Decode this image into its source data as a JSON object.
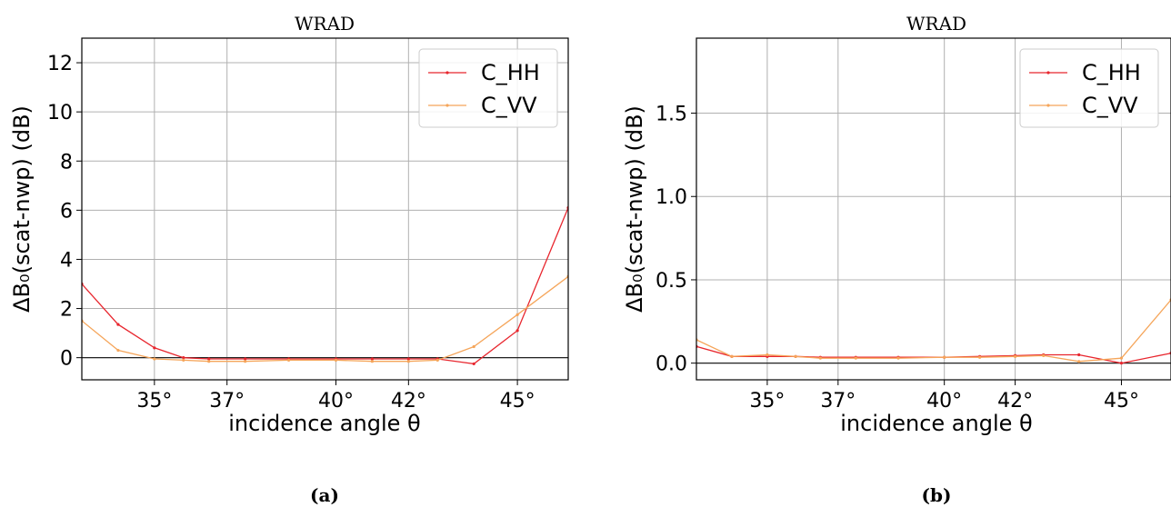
{
  "chart_data": [
    {
      "type": "line",
      "panel_label": "(a)",
      "title": "WRAD",
      "xlabel": "incidence angle θ",
      "ylabel": "ΔB₀(scat-nwp) (dB)",
      "xlim": [
        33.0,
        46.4
      ],
      "ylim": [
        -0.9,
        13.0
      ],
      "xticks": [
        35,
        37,
        40,
        42,
        45
      ],
      "xtick_labels": [
        "35°",
        "37°",
        "40°",
        "42°",
        "45°"
      ],
      "yticks": [
        0,
        2,
        4,
        6,
        8,
        10,
        12
      ],
      "ytick_labels": [
        "0",
        "2",
        "4",
        "6",
        "8",
        "10",
        "12"
      ],
      "grid": true,
      "zero_line": true,
      "legend": "top-right",
      "series": [
        {
          "name": "C_HH",
          "color": "#e8262e",
          "x": [
            33.0,
            34.0,
            35.0,
            35.8,
            36.5,
            37.5,
            38.7,
            40.0,
            41.0,
            42.0,
            42.8,
            43.8,
            45.0,
            46.4
          ],
          "y": [
            3.0,
            1.35,
            0.4,
            0.0,
            -0.05,
            -0.05,
            -0.05,
            -0.05,
            -0.05,
            -0.05,
            -0.05,
            -0.25,
            1.1,
            6.1
          ]
        },
        {
          "name": "C_VV",
          "color": "#f5a55a",
          "x": [
            33.0,
            34.0,
            35.0,
            35.8,
            36.5,
            37.5,
            38.7,
            40.0,
            41.0,
            42.0,
            42.8,
            43.8,
            45.0,
            46.4
          ],
          "y": [
            1.5,
            0.3,
            -0.05,
            -0.1,
            -0.15,
            -0.15,
            -0.1,
            -0.1,
            -0.15,
            -0.15,
            -0.1,
            0.45,
            1.75,
            3.3
          ]
        }
      ]
    },
    {
      "type": "line",
      "panel_label": "(b)",
      "title": "WRAD",
      "xlabel": "incidence angle θ",
      "ylabel": "ΔB₀(scat-nwp) (dB)",
      "xlim": [
        33.0,
        46.4
      ],
      "ylim": [
        -0.1,
        1.95
      ],
      "xticks": [
        35,
        37,
        40,
        42,
        45
      ],
      "xtick_labels": [
        "35°",
        "37°",
        "40°",
        "42°",
        "45°"
      ],
      "yticks": [
        0.0,
        0.5,
        1.0,
        1.5
      ],
      "ytick_labels": [
        "0.0",
        "0.5",
        "1.0",
        "1.5"
      ],
      "grid": true,
      "zero_line": true,
      "legend": "top-right",
      "series": [
        {
          "name": "C_HH",
          "color": "#e8262e",
          "x": [
            33.0,
            34.0,
            35.0,
            35.8,
            36.5,
            37.5,
            38.7,
            40.0,
            41.0,
            42.0,
            42.8,
            43.8,
            45.0,
            46.4
          ],
          "y": [
            0.1,
            0.04,
            0.04,
            0.04,
            0.035,
            0.035,
            0.035,
            0.035,
            0.04,
            0.045,
            0.05,
            0.05,
            0.0,
            0.06
          ]
        },
        {
          "name": "C_VV",
          "color": "#f5a55a",
          "x": [
            33.0,
            34.0,
            35.0,
            35.8,
            36.5,
            37.5,
            38.7,
            40.0,
            41.0,
            42.0,
            42.8,
            43.8,
            45.0,
            46.4
          ],
          "y": [
            0.14,
            0.04,
            0.05,
            0.04,
            0.03,
            0.03,
            0.03,
            0.035,
            0.035,
            0.04,
            0.045,
            0.01,
            0.03,
            0.38
          ]
        }
      ]
    }
  ]
}
